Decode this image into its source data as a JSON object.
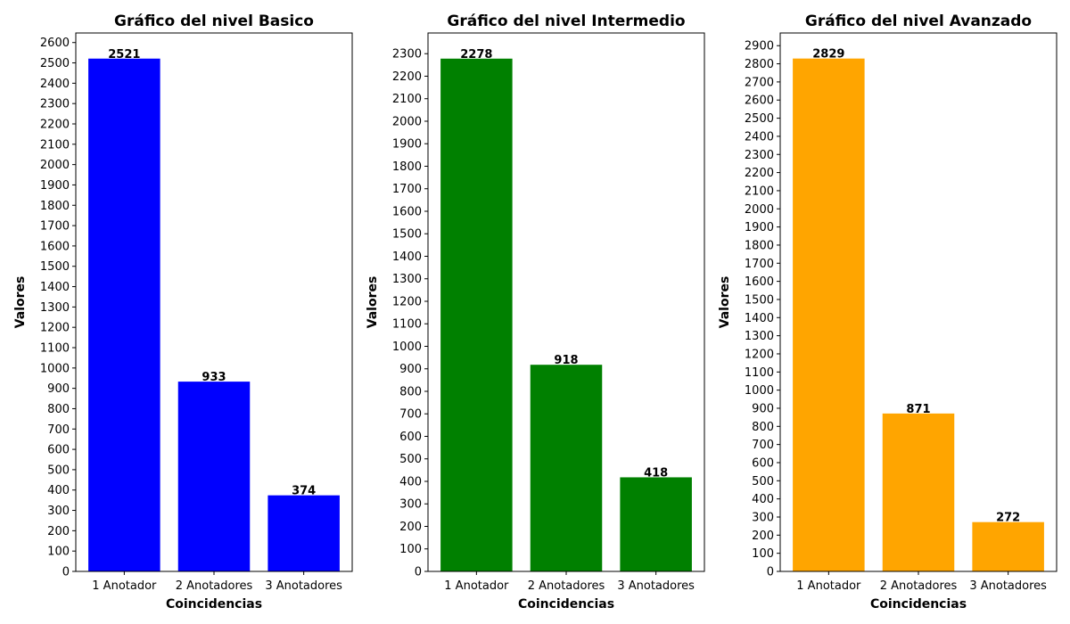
{
  "chart_data": [
    {
      "type": "bar",
      "title": "Gráfico del nivel Basico",
      "xlabel": "Coincidencias",
      "ylabel": "Valores",
      "categories": [
        "1 Anotador",
        "2 Anotadores",
        "3 Anotadores"
      ],
      "values": [
        2521,
        933,
        374
      ],
      "color": "#0000ff",
      "ylim": [
        0,
        2647
      ],
      "ytick_step": 100,
      "grid": false
    },
    {
      "type": "bar",
      "title": "Gráfico del nivel Intermedio",
      "xlabel": "Coincidencias",
      "ylabel": "Valores",
      "categories": [
        "1 Anotador",
        "2 Anotadores",
        "3 Anotadores"
      ],
      "values": [
        2278,
        918,
        418
      ],
      "color": "#008000",
      "ylim": [
        0,
        2392
      ],
      "ytick_step": 100,
      "grid": false
    },
    {
      "type": "bar",
      "title": "Gráfico del nivel Avanzado",
      "xlabel": "Coincidencias",
      "ylabel": "Valores",
      "categories": [
        "1 Anotador",
        "2 Anotadores",
        "3 Anotadores"
      ],
      "values": [
        2829,
        871,
        272
      ],
      "color": "#ffa500",
      "ylim": [
        0,
        2970
      ],
      "ytick_step": 100,
      "grid": false
    }
  ]
}
